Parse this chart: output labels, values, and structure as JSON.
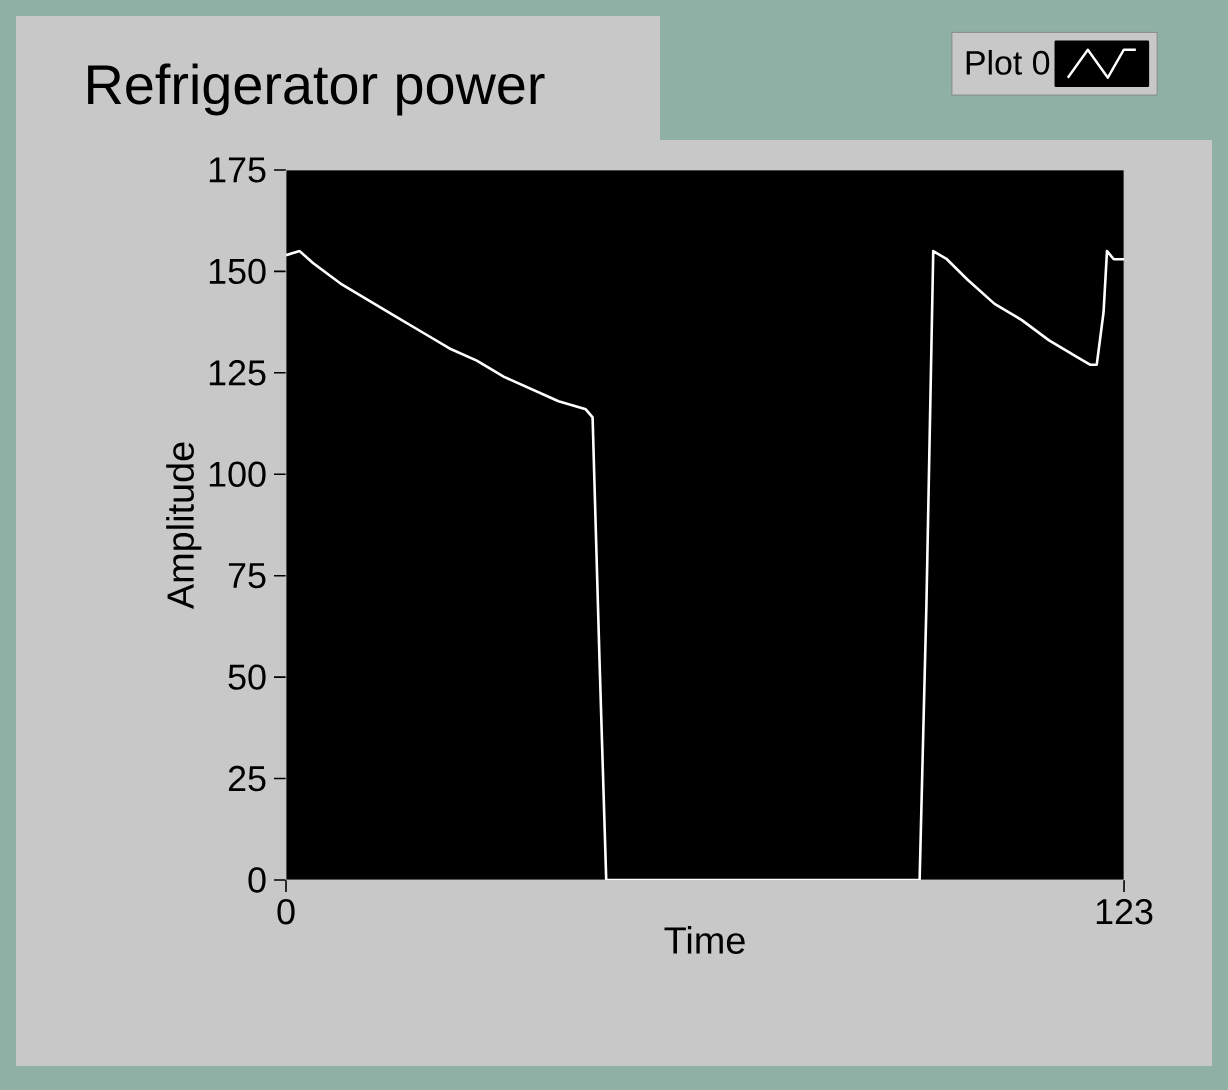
{
  "chart_data": {
    "type": "line",
    "title": "Refrigerator power",
    "xlabel": "Time",
    "ylabel": "Amplitude",
    "xlim": [
      0,
      123
    ],
    "xticks": [
      0,
      123
    ],
    "ylim": [
      0,
      175
    ],
    "yticks": [
      0,
      25,
      50,
      75,
      100,
      125,
      150,
      175
    ],
    "legend": "top right",
    "marker": "none",
    "line_style": "solid",
    "series": [
      {
        "name": "Plot 0",
        "color": "#ffffff",
        "x": [
          0,
          2,
          4,
          8,
          12,
          16,
          20,
          24,
          28,
          32,
          36,
          40,
          44,
          45,
          46,
          47,
          93,
          94,
          95,
          97,
          100,
          104,
          108,
          112,
          116,
          118,
          119,
          120,
          120.5,
          121.5,
          123
        ],
        "values": [
          154,
          155,
          152,
          147,
          143,
          139,
          135,
          131,
          128,
          124,
          121,
          118,
          116,
          114,
          55,
          0,
          0,
          68,
          155,
          153,
          148,
          142,
          138,
          133,
          129,
          127,
          127,
          140,
          155,
          153,
          153
        ]
      }
    ]
  }
}
